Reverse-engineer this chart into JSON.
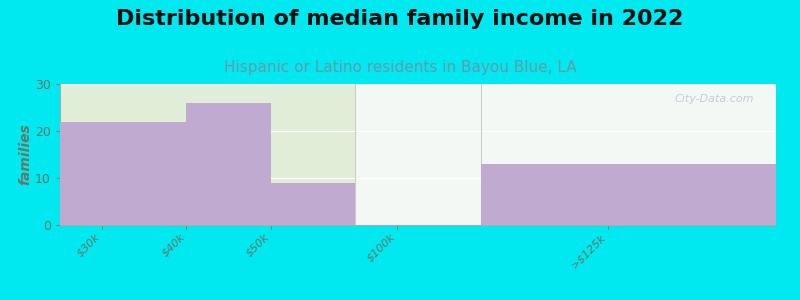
{
  "title": "Distribution of median family income in 2022",
  "subtitle": "Hispanic or Latino residents in Bayou Blue, LA",
  "values": [
    22,
    26,
    9,
    0,
    13
  ],
  "bar_color": "#c0aad0",
  "background_color": "#00e8f0",
  "plot_bg_left": "#e0eed8",
  "plot_bg_right": "#eef4ee",
  "plot_bg_far_right": "#f4f8f4",
  "ylabel": "families",
  "ylim": [
    0,
    30
  ],
  "yticks": [
    0,
    10,
    20,
    30
  ],
  "title_fontsize": 16,
  "subtitle_fontsize": 11,
  "subtitle_color": "#6699aa",
  "ylabel_color": "#667766",
  "tick_color": "#667766",
  "watermark": "City-Data.com",
  "xtick_labels": [
    "$30k",
    "$40k",
    "$50k",
    "$100k",
    ">$125k"
  ],
  "xtick_positions": [
    0.5,
    1.5,
    2.5,
    4.0,
    6.5
  ]
}
